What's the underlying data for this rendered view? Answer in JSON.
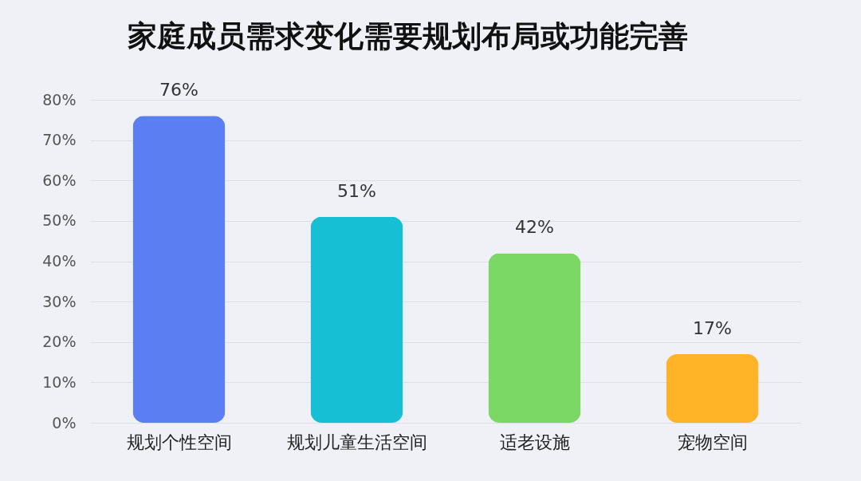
{
  "chart_data": {
    "type": "bar",
    "title": "家庭成员需求变化需要规划布局或功能完善",
    "categories": [
      "规划个性空间",
      "规划儿童生活空间",
      "适老设施",
      "宠物空间"
    ],
    "values": [
      76,
      51,
      42,
      17
    ],
    "colors": [
      "#5b7ef2",
      "#16bfd3",
      "#7bd864",
      "#ffb326"
    ],
    "value_labels": [
      "76%",
      "51%",
      "42%",
      "17%"
    ],
    "ylim": [
      0,
      80
    ],
    "yticks": [
      {
        "value": 0,
        "label": "0%"
      },
      {
        "value": 10,
        "label": "10%"
      },
      {
        "value": 20,
        "label": "20%"
      },
      {
        "value": 30,
        "label": "30%"
      },
      {
        "value": 40,
        "label": "40%"
      },
      {
        "value": 50,
        "label": "50%"
      },
      {
        "value": 60,
        "label": "60%"
      },
      {
        "value": 70,
        "label": "70%"
      },
      {
        "value": 80,
        "label": "80%"
      }
    ],
    "grid": "y"
  }
}
